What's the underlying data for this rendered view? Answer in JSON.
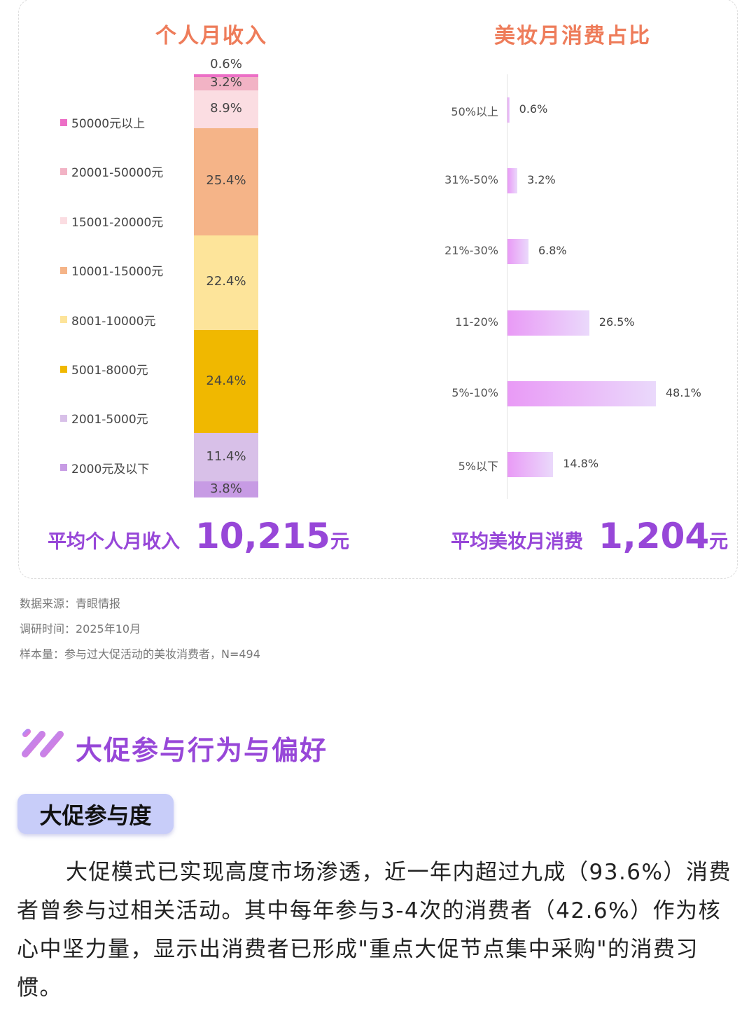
{
  "charts": {
    "income_title": "个人月收入",
    "beauty_title": "美妆月消费占比"
  },
  "chart_data": [
    {
      "type": "bar",
      "stacked": true,
      "title": "个人月收入",
      "categories": [
        "50000元以上",
        "20001-50000元",
        "15001-20000元",
        "10001-15000元",
        "8001-10000元",
        "5001-8000元",
        "2001-5000元",
        "2000元及以下"
      ],
      "values": [
        0.6,
        3.2,
        8.9,
        25.4,
        22.4,
        24.4,
        11.4,
        3.8
      ],
      "labels": [
        "0.6%",
        "3.2%",
        "8.9%",
        "25.4%",
        "22.4%",
        "24.4%",
        "11.4%",
        "3.8%"
      ],
      "colors": [
        "#ec6fc6",
        "#f2b3c5",
        "#fbdde2",
        "#f5b488",
        "#fde49a",
        "#f0b800",
        "#d8c0e8",
        "#c79be4"
      ],
      "legend": "left"
    },
    {
      "type": "bar",
      "orientation": "horizontal",
      "title": "美妆月消费占比",
      "categories": [
        "50%以上",
        "31%-50%",
        "21%-30%",
        "11-20%",
        "5%-10%",
        "5%以下"
      ],
      "values": [
        0.6,
        3.2,
        6.8,
        26.5,
        48.1,
        14.8
      ],
      "labels": [
        "0.6%",
        "3.2%",
        "6.8%",
        "26.5%",
        "48.1%",
        "14.8%"
      ]
    }
  ],
  "summary": {
    "income_label": "平均个人月收入",
    "income_value": "10,215",
    "income_unit": "元",
    "beauty_label": "平均美妆月消费",
    "beauty_value": "1,204",
    "beauty_unit": "元"
  },
  "meta": {
    "source": "数据来源：青眼情报",
    "time": "调研时间：2025年10月",
    "sample": "样本量：参与过大促活动的美妆消费者，N=494"
  },
  "section": {
    "title": "大促参与行为与偏好",
    "pill": "大促参与度",
    "paragraph": "大促模式已实现高度市场渗透，近一年内超过九成（93.6%）消费者曾参与过相关活动。其中每年参与3-4次的消费者（42.6%）作为核心中坚力量，显示出消费者已形成\"重点大促节点集中采购\"的消费习惯。"
  }
}
